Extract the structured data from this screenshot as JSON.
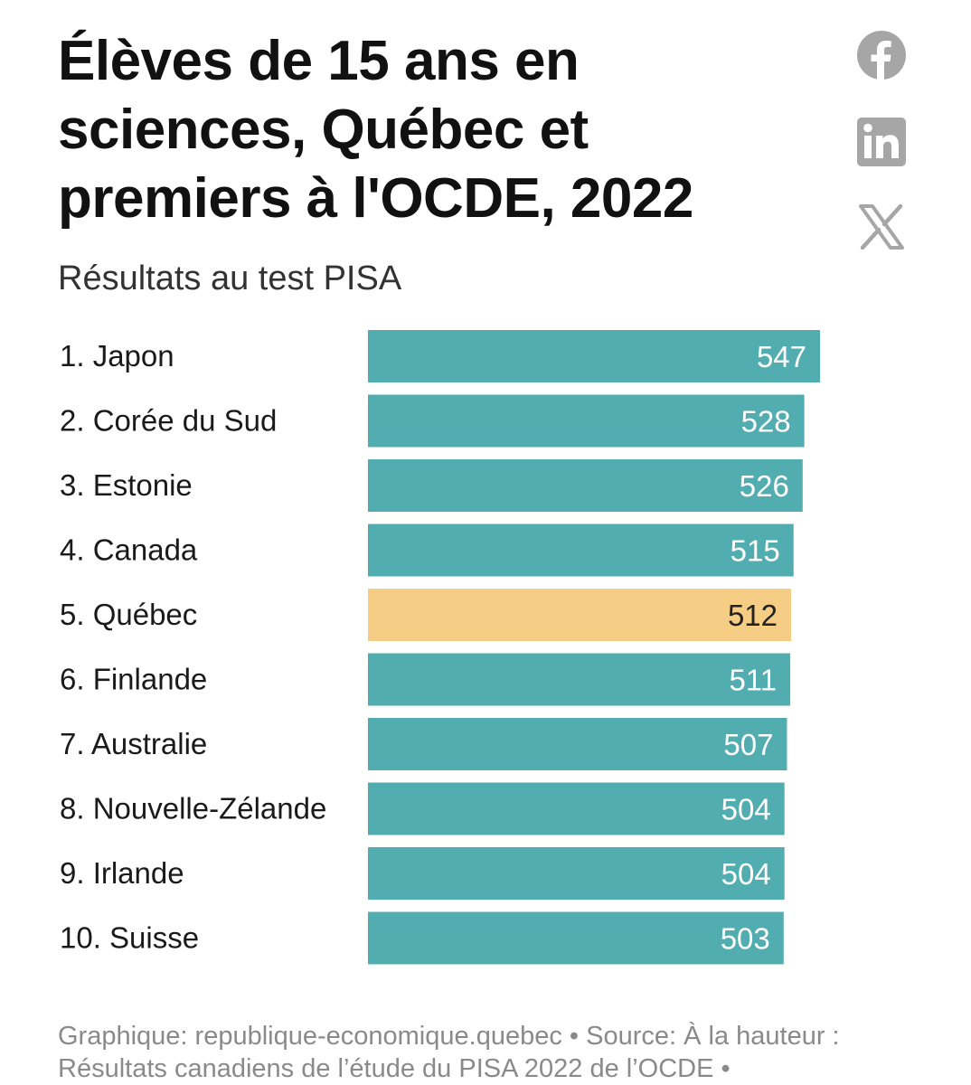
{
  "header": {
    "title": "Élèves de 15 ans en sciences, Québec et premiers à l'OCDE, 2022",
    "subtitle": "Résultats au test PISA"
  },
  "share": {
    "icons": [
      "facebook-icon",
      "linkedin-icon",
      "x-icon"
    ],
    "icon_color": "#a6a6a6"
  },
  "colors": {
    "bar": "#52adb0",
    "highlight": "#f6cd85",
    "bar_label_light": "#ffffff",
    "bar_label_dark": "#222222"
  },
  "chart_data": {
    "type": "bar",
    "orientation": "horizontal",
    "title": "Élèves de 15 ans en sciences, Québec et premiers à l'OCDE, 2022",
    "subtitle": "Résultats au test PISA",
    "categories": [
      "1. Japon",
      "2. Corée du Sud",
      "3. Estonie",
      "4. Canada",
      "5. Québec",
      "6. Finlande",
      "7. Australie",
      "8. Nouvelle-Zélande",
      "9. Irlande",
      "10. Suisse"
    ],
    "values": [
      547,
      528,
      526,
      515,
      512,
      511,
      507,
      504,
      504,
      503
    ],
    "highlight_index": 4,
    "data_labels": true
  },
  "footer": {
    "text": "Graphique: republique-economique.quebec • Source: À la hauteur : Résultats canadiens de l’étude du PISA 2022 de l’OCDE •"
  }
}
